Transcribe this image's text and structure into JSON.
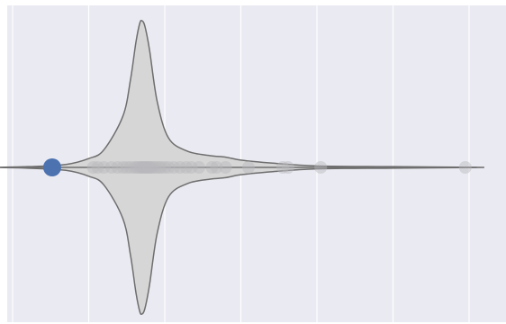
{
  "colors": {
    "plot_background": "#eaeaf2",
    "gridline": "#ffffff",
    "violin_fill": "#d6d6d6",
    "violin_edge": "#6e6e6e",
    "point_gray": "#b8b8bd",
    "highlight_point": "#4c72b0"
  },
  "chart_data": {
    "type": "violin",
    "orientation": "horizontal",
    "grid": true,
    "gridlines_x": [
      -1,
      0,
      1,
      2,
      3,
      4,
      5
    ],
    "xlim": [
      -1.5,
      5.1
    ],
    "value_axis_note": "",
    "points": [
      0.06,
      0.12,
      0.2,
      0.3,
      0.38,
      0.45,
      0.5,
      0.55,
      0.6,
      0.63,
      0.66,
      0.68,
      0.7,
      0.72,
      0.74,
      0.76,
      0.78,
      0.8,
      0.82,
      0.85,
      0.88,
      0.92,
      0.95,
      1.0,
      1.05,
      1.12,
      1.2,
      1.28,
      1.35,
      1.45,
      1.62,
      1.68,
      1.8,
      2.1,
      2.55,
      2.62,
      3.05,
      4.95
    ],
    "highlight_point": -0.48,
    "violin_density": [
      {
        "x": -1.3,
        "w": 0.0
      },
      {
        "x": -0.8,
        "w": 0.005
      },
      {
        "x": -0.3,
        "w": 0.02
      },
      {
        "x": 0.0,
        "w": 0.06
      },
      {
        "x": 0.2,
        "w": 0.12
      },
      {
        "x": 0.45,
        "w": 0.35
      },
      {
        "x": 0.55,
        "w": 0.6
      },
      {
        "x": 0.62,
        "w": 0.85
      },
      {
        "x": 0.67,
        "w": 0.98
      },
      {
        "x": 0.7,
        "w": 1.0
      },
      {
        "x": 0.74,
        "w": 0.96
      },
      {
        "x": 0.8,
        "w": 0.8
      },
      {
        "x": 0.9,
        "w": 0.45
      },
      {
        "x": 1.05,
        "w": 0.2
      },
      {
        "x": 1.3,
        "w": 0.11
      },
      {
        "x": 1.6,
        "w": 0.08
      },
      {
        "x": 1.8,
        "w": 0.07
      },
      {
        "x": 2.0,
        "w": 0.05
      },
      {
        "x": 2.4,
        "w": 0.03
      },
      {
        "x": 3.0,
        "w": 0.01
      },
      {
        "x": 4.0,
        "w": 0.005
      },
      {
        "x": 5.2,
        "w": 0.0
      }
    ]
  }
}
